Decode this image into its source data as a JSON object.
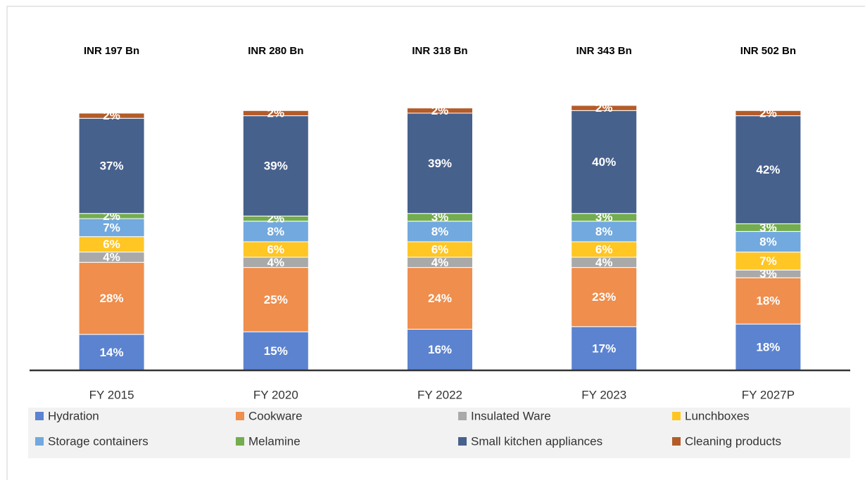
{
  "chart_data": {
    "type": "stacked_bar",
    "categories": [
      "FY 2015",
      "FY 2020",
      "FY 2022",
      "FY 2023",
      "FY 2027P"
    ],
    "annotations": [
      "INR 197 Bn",
      "INR 280 Bn",
      "INR 318 Bn",
      "INR 343 Bn",
      "INR 502 Bn"
    ],
    "series": [
      {
        "name": "Hydration",
        "color": "#5b83d0",
        "values": [
          14,
          15,
          16,
          17,
          18
        ],
        "value_labels": [
          "14%",
          "15%",
          "16%",
          "17%",
          "18%"
        ]
      },
      {
        "name": "Cookware",
        "color": "#ef8e4d",
        "values": [
          28,
          25,
          24,
          23,
          18
        ],
        "value_labels": [
          "28%",
          "25%",
          "24%",
          "23%",
          "18%"
        ]
      },
      {
        "name": "Insulated Ware",
        "color": "#a9a9a9",
        "values": [
          4,
          4,
          4,
          4,
          3
        ],
        "value_labels": [
          "4%",
          "4%",
          "4%",
          "4%",
          "3%"
        ]
      },
      {
        "name": "Lunchboxes",
        "color": "#ffc624",
        "values": [
          6,
          6,
          6,
          6,
          7
        ],
        "value_labels": [
          "6%",
          "6%",
          "6%",
          "6%",
          "7%"
        ]
      },
      {
        "name": "Storage containers",
        "color": "#72a9de",
        "values": [
          7,
          8,
          8,
          8,
          8
        ],
        "value_labels": [
          "7%",
          "8%",
          "8%",
          "8%",
          "8%"
        ]
      },
      {
        "name": "Melamine",
        "color": "#73ad4f",
        "values": [
          2,
          2,
          3,
          3,
          3
        ],
        "value_labels": [
          "2%",
          "2%",
          "3%",
          "3%",
          "3%"
        ]
      },
      {
        "name": "Small kitchen appliances",
        "color": "#47618d",
        "values": [
          37,
          39,
          39,
          40,
          42
        ],
        "value_labels": [
          "37%",
          "39%",
          "39%",
          "40%",
          "42%"
        ]
      },
      {
        "name": "Cleaning products",
        "color": "#b35c2a",
        "values": [
          2,
          2,
          2,
          2,
          2
        ],
        "value_labels": [
          "2%",
          "2%",
          "2%",
          "2%",
          "2%"
        ]
      }
    ],
    "legend": "bottom"
  }
}
